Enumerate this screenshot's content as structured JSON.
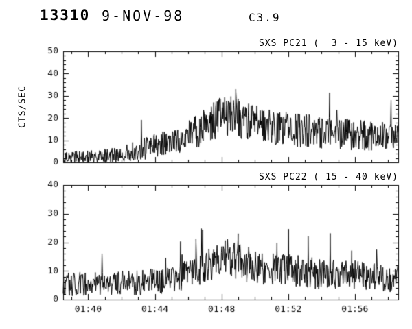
{
  "header": {
    "event_number": "13310",
    "date": "9-NOV-98",
    "goes_class": "C3.9"
  },
  "chart_data": [
    {
      "type": "line",
      "series_name": "SXS PC21",
      "title": "SXS PC21 (  3 - 15 keV)",
      "xlabel": "",
      "ylabel": "CTS/SEC",
      "ylim": [
        0,
        50
      ],
      "yticks": [
        0,
        10,
        20,
        30,
        40,
        50
      ],
      "y_minor_step": 2,
      "x_start_min": 98.5,
      "x_end_min": 118.6,
      "x_major_ticks_min": [
        100,
        104,
        108,
        112,
        116
      ],
      "x_tick_labels": [
        "01:40",
        "01:44",
        "01:48",
        "01:52",
        "01:56"
      ],
      "x_minor_step_min": 1,
      "line_color": "#000000",
      "envelope": {
        "x_min": [
          98.5,
          100,
          101.5,
          103,
          104,
          105,
          106,
          106.8,
          107.3,
          108,
          108.8,
          109.3,
          110,
          111,
          112,
          113.5,
          115,
          116.5,
          118.6
        ],
        "mean_cts": [
          2.0,
          2.5,
          3.0,
          5.5,
          7.5,
          9.5,
          12.0,
          15.0,
          18.0,
          20.5,
          21.0,
          19.0,
          17.5,
          16.0,
          15.0,
          14.0,
          13.0,
          12.0,
          11.0
        ]
      },
      "noise": {
        "k": 2.0,
        "spike_prob": 0.012,
        "spike_scale": 1.6,
        "seed": 1311
      }
    },
    {
      "type": "line",
      "series_name": "SXS PC22",
      "title": "SXS PC22 ( 15 - 40 keV)",
      "xlabel": "",
      "ylabel": "",
      "ylim": [
        0,
        40
      ],
      "yticks": [
        0,
        10,
        20,
        30,
        40
      ],
      "y_minor_step": 2,
      "x_start_min": 98.5,
      "x_end_min": 118.6,
      "x_major_ticks_min": [
        100,
        104,
        108,
        112,
        116
      ],
      "x_tick_labels": [
        "01:40",
        "01:44",
        "01:48",
        "01:52",
        "01:56"
      ],
      "x_minor_step_min": 1,
      "line_color": "#000000",
      "envelope": {
        "x_min": [
          98.5,
          101,
          103,
          104.5,
          105.5,
          106.5,
          107.3,
          107.9,
          108.4,
          109,
          110,
          111,
          112.5,
          114,
          116,
          118,
          118.6
        ],
        "mean_cts": [
          5.5,
          5.5,
          6.0,
          6.5,
          8.0,
          10.5,
          13.0,
          15.0,
          14.5,
          13.0,
          11.5,
          10.5,
          10.0,
          9.0,
          8.5,
          7.5,
          7.0
        ]
      },
      "noise": {
        "k": 1.8,
        "spike_prob": 0.012,
        "spike_scale": 1.6,
        "seed": 1322
      }
    }
  ]
}
